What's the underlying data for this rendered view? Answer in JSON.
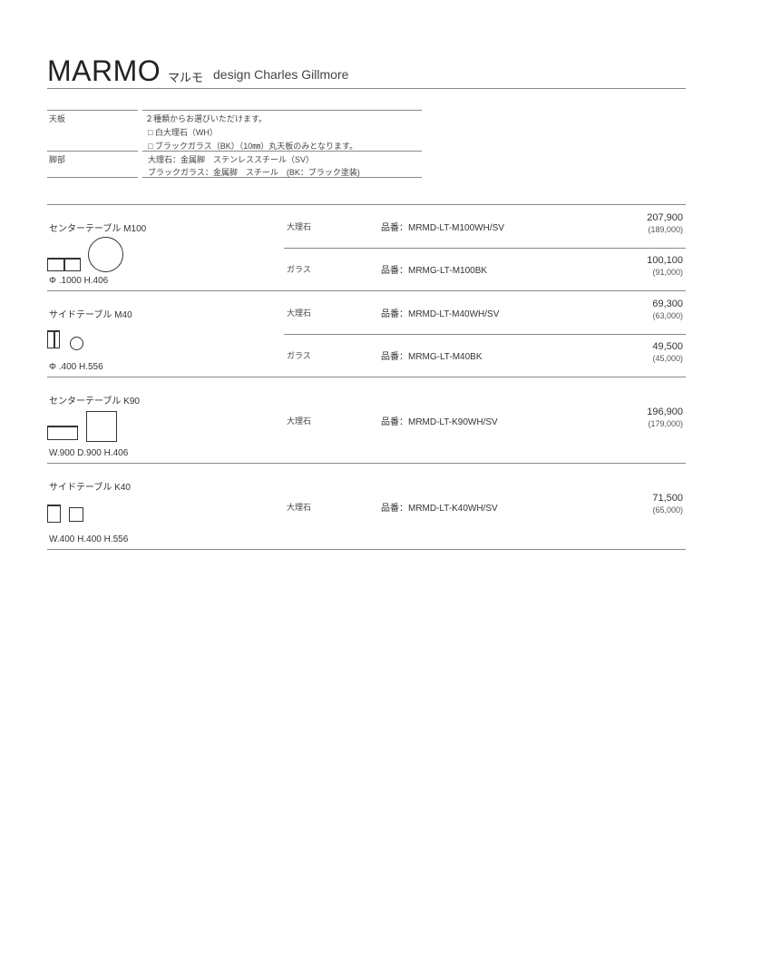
{
  "header": {
    "title": "MARMO",
    "kana": "マルモ",
    "designer": "design Charles Gillmore"
  },
  "specs": [
    {
      "label": "天板",
      "lines": [
        "２種類からお選びいただけます。",
        "□ 白大理石（WH）",
        "□ ブラックガラス（BK）（10㎜）丸天板のみとなります。"
      ]
    },
    {
      "label": "脚部",
      "lines": [
        "大理石：金属脚　ステンレススチール（SV）",
        "ブラックガラス：金属脚　スチール　(BK：ブラック塗装)"
      ]
    }
  ],
  "products": [
    {
      "name": "センターテーブル M100",
      "dims": "Φ .1000  H.406",
      "variants": [
        {
          "material": "大理石",
          "code": "品番：MRMD-LT-M100WH/SV",
          "price": "207,900",
          "price_ex": "(189,000)"
        },
        {
          "material": "ガラス",
          "code": "品番：MRMG-LT-M100BK",
          "price": "100,100",
          "price_ex": "(91,000)"
        }
      ]
    },
    {
      "name": "サイドテーブル M40",
      "dims": "Φ .400  H.556",
      "variants": [
        {
          "material": "大理石",
          "code": "品番：MRMD-LT-M40WH/SV",
          "price": "69,300",
          "price_ex": "(63,000)"
        },
        {
          "material": "ガラス",
          "code": "品番：MRMG-LT-M40BK",
          "price": "49,500",
          "price_ex": "(45,000)"
        }
      ]
    },
    {
      "name": "センターテーブル K90",
      "dims": "W.900  D.900  H.406",
      "variants": [
        {
          "material": "大理石",
          "code": "品番：MRMD-LT-K90WH/SV",
          "price": "196,900",
          "price_ex": "(179,000)"
        }
      ]
    },
    {
      "name": "サイドテーブル K40",
      "dims": "W.400  H.400  H.556",
      "variants": [
        {
          "material": "大理石",
          "code": "品番：MRMD-LT-K40WH/SV",
          "price": "71,500",
          "price_ex": "(65,000)"
        }
      ]
    }
  ]
}
